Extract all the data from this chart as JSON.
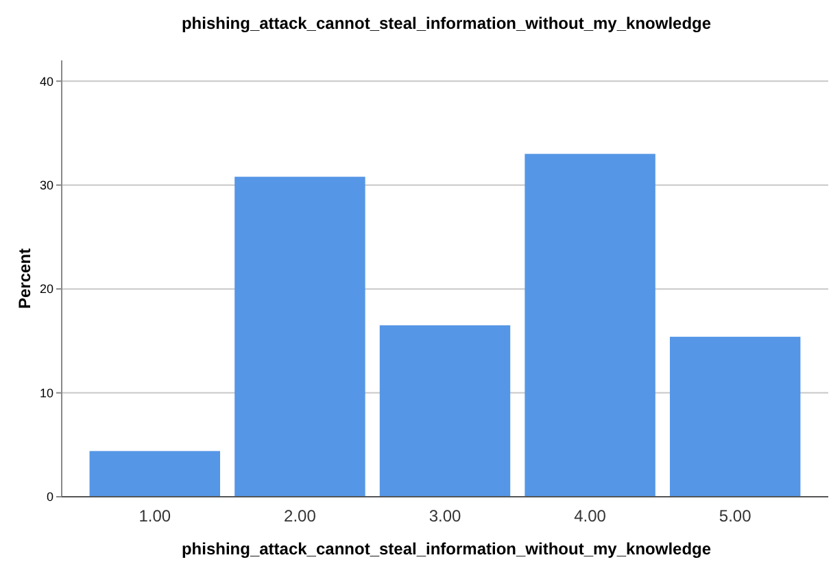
{
  "chart_data": {
    "type": "bar",
    "title": "phishing_attack_cannot_steal_information_without_my_knowledge",
    "xlabel": "phishing_attack_cannot_steal_information_without_my_knowledge",
    "ylabel": "Percent",
    "categories": [
      "1.00",
      "2.00",
      "3.00",
      "4.00",
      "5.00"
    ],
    "values": [
      4.4,
      30.8,
      16.5,
      33.0,
      15.4
    ],
    "color": "#5596e6",
    "ylim": [
      0,
      42
    ],
    "yticks": [
      0,
      10,
      20,
      30,
      40
    ],
    "grid": "y"
  }
}
